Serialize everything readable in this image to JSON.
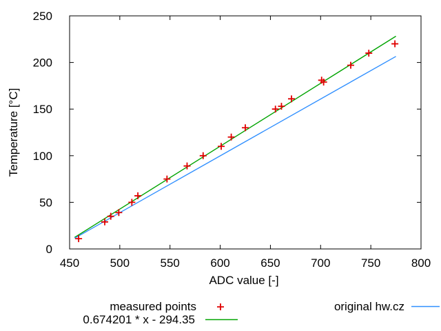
{
  "figure": {
    "background": "#ffffff",
    "border_color": "#000000",
    "text_color": "#000000"
  },
  "chart_data": {
    "type": "scatter",
    "title": "",
    "xlabel": "ADC value [-]",
    "ylabel": "Temperature [°C]",
    "xlim": [
      450,
      800
    ],
    "ylim": [
      0,
      250
    ],
    "xticks": [
      450,
      500,
      550,
      600,
      650,
      700,
      750,
      800
    ],
    "yticks": [
      0,
      50,
      100,
      150,
      200,
      250
    ],
    "grid": false,
    "tick_style": "inward-mirrored",
    "legend_position": "below-plot",
    "series": [
      {
        "name": "measured points",
        "type": "scatter",
        "marker": "plus",
        "color": "#e00000",
        "points": [
          [
            459,
            11
          ],
          [
            485,
            29
          ],
          [
            491,
            35
          ],
          [
            499,
            39
          ],
          [
            512,
            50
          ],
          [
            518,
            57
          ],
          [
            547,
            75
          ],
          [
            567,
            89
          ],
          [
            583,
            100
          ],
          [
            601,
            110
          ],
          [
            611,
            120
          ],
          [
            625,
            130
          ],
          [
            655,
            150
          ],
          [
            661,
            153
          ],
          [
            671,
            161
          ],
          [
            701,
            181
          ],
          [
            703,
            179
          ],
          [
            730,
            197
          ],
          [
            748,
            210
          ],
          [
            774,
            220
          ]
        ]
      },
      {
        "name": "0.674201 * x - 294.35",
        "type": "line",
        "color": "#00a400",
        "points": [
          [
            455,
            12.4
          ],
          [
            775,
            228.2
          ]
        ]
      },
      {
        "name": "original hw.cz",
        "type": "line",
        "color": "#2f8fff",
        "points": [
          [
            455,
            11.5
          ],
          [
            775,
            206.5
          ]
        ]
      }
    ]
  }
}
